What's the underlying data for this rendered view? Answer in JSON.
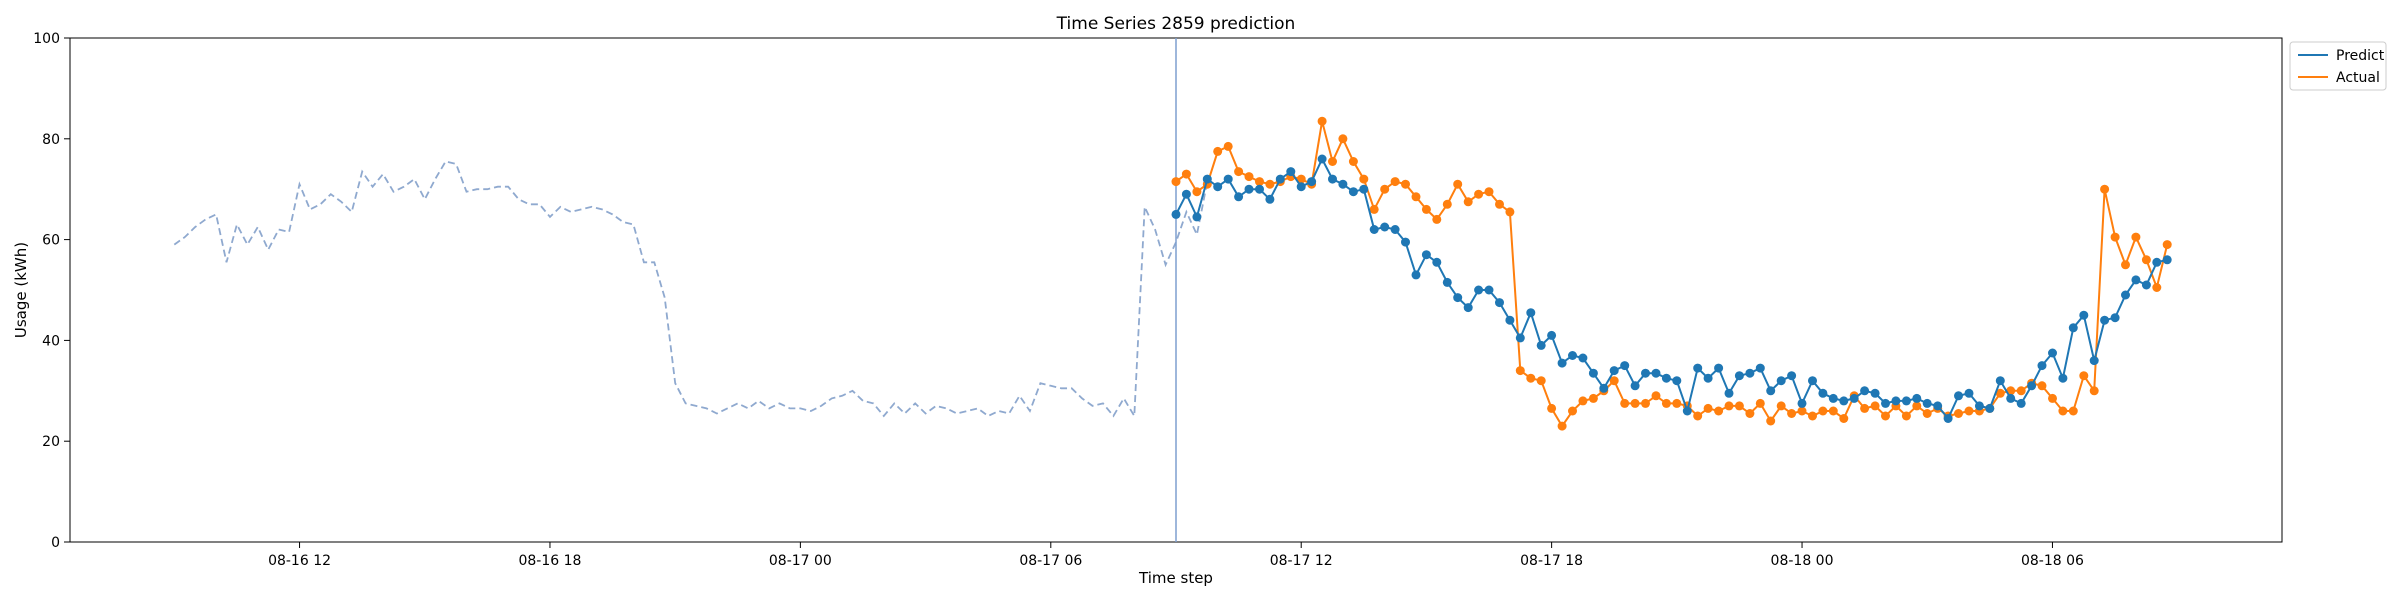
{
  "chart_data": {
    "type": "line",
    "title": "Time Series 2859 prediction",
    "xlabel": "Time step",
    "ylabel": "Usage (kWh)",
    "ylim": [
      0,
      100
    ],
    "yticks": [
      0,
      20,
      40,
      60,
      80,
      100
    ],
    "grid": false,
    "legend_position": "top-right-outside",
    "x_units": "hours from 08-16 09:00",
    "xlim": [
      -2.5,
      50.5
    ],
    "xticks": [
      {
        "x": 3,
        "label": "08-16 12"
      },
      {
        "x": 9,
        "label": "08-16 18"
      },
      {
        "x": 15,
        "label": "08-17 00"
      },
      {
        "x": 21,
        "label": "08-17 06"
      },
      {
        "x": 27,
        "label": "08-17 12"
      },
      {
        "x": 33,
        "label": "08-17 18"
      },
      {
        "x": 39,
        "label": "08-18 00"
      },
      {
        "x": 45,
        "label": "08-18 06"
      }
    ],
    "forecast_start_x": 24.0,
    "history": {
      "color": "#8fa9cf",
      "start_x": 0.0,
      "step": 0.25,
      "values": [
        59,
        60.5,
        62.5,
        64,
        65,
        55.5,
        63,
        59,
        62.5,
        58,
        62,
        61.5,
        71,
        66,
        67,
        69,
        67.5,
        65.5,
        73.5,
        70.5,
        73,
        69.5,
        70.5,
        72,
        68,
        72,
        75.5,
        75,
        69.5,
        70,
        70,
        70.5,
        70.5,
        68,
        67,
        67,
        64.5,
        66.5,
        65.5,
        66,
        66.5,
        66,
        65,
        63.5,
        63,
        55.5,
        55.5,
        48.5,
        31.5,
        27.5,
        27,
        26.5,
        25.5,
        26.5,
        27.5,
        26.5,
        28,
        26.5,
        27.5,
        26.5,
        26.5,
        26,
        27,
        28.5,
        29,
        30,
        28,
        27.5,
        25,
        27.5,
        25.5,
        27.5,
        25.5,
        27,
        26.5,
        25.5,
        26,
        26.5,
        25,
        26,
        25.5,
        29,
        26,
        31.5,
        31,
        30.5,
        30.5,
        28.5,
        27,
        27.5,
        25,
        28.5,
        25,
        66.5,
        62,
        55,
        59.5,
        65.5,
        61,
        71.5
      ]
    },
    "series": [
      {
        "name": "Predict",
        "color": "#1f77b4",
        "start_x": 24.0,
        "step": 0.25,
        "values": [
          65,
          69,
          64.5,
          72,
          70.5,
          72,
          68.5,
          70,
          70,
          68,
          72,
          73.5,
          70.5,
          71.5,
          76,
          72,
          71,
          69.5,
          70,
          62,
          62.5,
          62,
          59.5,
          53,
          57,
          55.5,
          51.5,
          48.5,
          46.5,
          50,
          50,
          47.5,
          44,
          40.5,
          45.5,
          39,
          41,
          35.5,
          37,
          36.5,
          33.5,
          30.5,
          34,
          35,
          31,
          33.5,
          33.5,
          32.5,
          32,
          26,
          34.5,
          32.5,
          34.5,
          29.5,
          33,
          33.5,
          34.5,
          30,
          32,
          33,
          27.5,
          32,
          29.5,
          28.5,
          28,
          28.5,
          30,
          29.5,
          27.5,
          28,
          28,
          28.5,
          27.5,
          27,
          24.5,
          29,
          29.5,
          27,
          26.5,
          32,
          28.5,
          27.5,
          31,
          35,
          37.5,
          32.5,
          42.5,
          45,
          36,
          44,
          44.5,
          49,
          52,
          51,
          55.5,
          56
        ]
      },
      {
        "name": "Actual",
        "color": "#ff7f0e",
        "start_x": 24.0,
        "step": 0.25,
        "values": [
          71.5,
          73,
          69.5,
          71,
          77.5,
          78.5,
          73.5,
          72.5,
          71.5,
          71,
          71.5,
          72.5,
          72,
          71,
          83.5,
          75.5,
          80,
          75.5,
          72,
          66,
          70,
          71.5,
          71,
          68.5,
          66,
          64,
          67,
          71,
          67.5,
          69,
          69.5,
          67,
          65.5,
          34,
          32.5,
          32,
          26.5,
          23,
          26,
          28,
          28.5,
          30,
          32,
          27.5,
          27.5,
          27.5,
          29,
          27.5,
          27.5,
          27,
          25,
          26.5,
          26,
          27,
          27,
          25.5,
          27.5,
          24,
          27,
          25.5,
          26,
          25,
          26,
          26,
          24.5,
          29,
          26.5,
          27,
          25,
          27,
          25,
          27,
          25.5,
          26.5,
          25,
          25.5,
          26,
          26,
          26.5,
          29.5,
          30,
          30,
          31.5,
          31,
          28.5,
          26,
          26,
          33,
          30,
          70,
          60.5,
          55,
          60.5,
          56,
          50.5,
          59
        ]
      }
    ]
  }
}
